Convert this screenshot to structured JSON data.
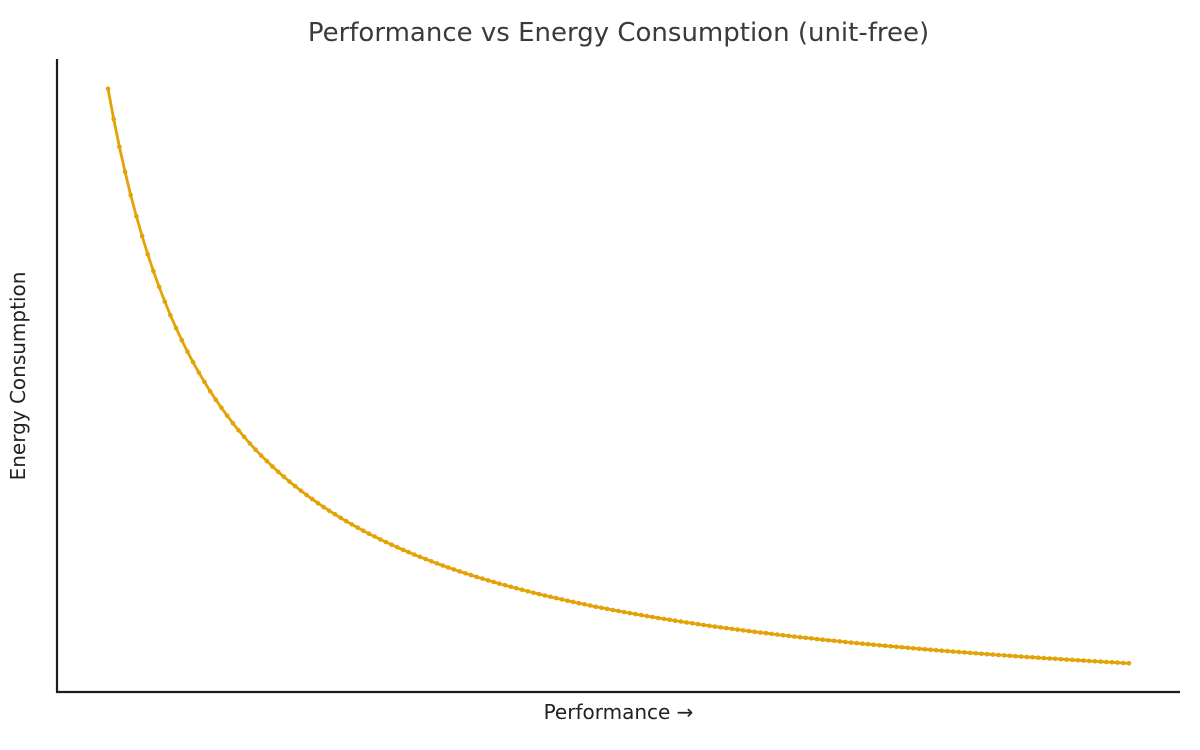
{
  "chart_data": {
    "type": "line",
    "title": "Performance vs Energy Consumption (unit-free)",
    "xlabel": "Performance →",
    "ylabel": "Energy Consumption",
    "formula": "y = 1/x",
    "x_range": [
      1,
      10
    ],
    "n_points": 181,
    "xlim": [
      0.55,
      10.45
    ],
    "ylim": [
      0.055,
      1.045
    ],
    "grid": false,
    "legend": "none",
    "tick_labels": "none (unit-free axes)",
    "line_color": "#E3A206",
    "marker": "small-dot",
    "spine_color": "#1c1c1c",
    "spines": [
      "left",
      "bottom"
    ],
    "sample_points": [
      [
        1.0,
        1.0
      ],
      [
        1.5,
        0.667
      ],
      [
        2.0,
        0.5
      ],
      [
        2.5,
        0.4
      ],
      [
        3.0,
        0.333
      ],
      [
        3.5,
        0.286
      ],
      [
        4.0,
        0.25
      ],
      [
        4.5,
        0.222
      ],
      [
        5.0,
        0.2
      ],
      [
        5.5,
        0.182
      ],
      [
        6.0,
        0.167
      ],
      [
        6.5,
        0.154
      ],
      [
        7.0,
        0.143
      ],
      [
        7.5,
        0.133
      ],
      [
        8.0,
        0.125
      ],
      [
        8.5,
        0.118
      ],
      [
        9.0,
        0.111
      ],
      [
        9.5,
        0.105
      ],
      [
        10.0,
        0.1
      ]
    ]
  }
}
